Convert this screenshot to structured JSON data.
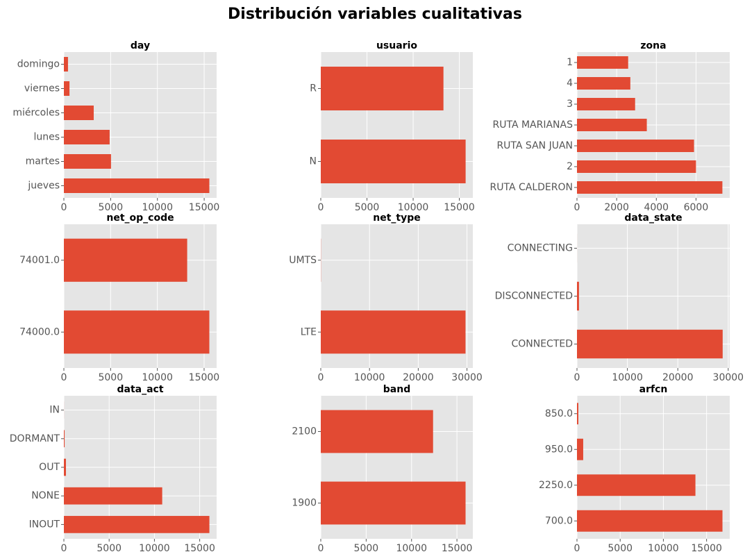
{
  "title": "Distribución variables cualitativas",
  "chart_data": [
    {
      "type": "barh",
      "title": "day",
      "categories": [
        "jueves",
        "martes",
        "lunes",
        "miércoles",
        "viernes",
        "domingo"
      ],
      "values": [
        15550,
        5040,
        4890,
        3190,
        600,
        440
      ],
      "color": "#e24a33",
      "xlim": [
        0,
        16330
      ],
      "xticks": [
        0,
        5000,
        10000,
        15000
      ],
      "grid": true
    },
    {
      "type": "barh",
      "title": "usuario",
      "categories": [
        "N",
        "R"
      ],
      "values": [
        15680,
        13280
      ],
      "color": "#e24a33",
      "xlim": [
        0,
        16460
      ],
      "xticks": [
        0,
        5000,
        10000,
        15000
      ],
      "grid": true
    },
    {
      "type": "barh",
      "title": "zona",
      "categories": [
        "RUTA CALDERON",
        "2",
        "RUTA SAN JUAN",
        "RUTA MARIANAS",
        "3",
        "4",
        "1"
      ],
      "values": [
        7330,
        6000,
        5900,
        3520,
        2930,
        2690,
        2580
      ],
      "color": "#e24a33",
      "xlim": [
        0,
        7700
      ],
      "xticks": [
        0,
        2000,
        4000,
        6000
      ],
      "grid": true
    },
    {
      "type": "barh",
      "title": "net_op_code",
      "categories": [
        "74000.0",
        "74001.0"
      ],
      "values": [
        15560,
        13190
      ],
      "color": "#e24a33",
      "xlim": [
        0,
        16340
      ],
      "xticks": [
        0,
        5000,
        10000,
        15000
      ],
      "grid": true
    },
    {
      "type": "barh",
      "title": "net_type",
      "categories": [
        "LTE",
        "UMTS"
      ],
      "values": [
        29700,
        30
      ],
      "color": "#e24a33",
      "xlim": [
        0,
        31200
      ],
      "xticks": [
        0,
        10000,
        20000,
        30000
      ],
      "grid": true
    },
    {
      "type": "barh",
      "title": "data_state",
      "categories": [
        "CONNECTED",
        "DISCONNECTED",
        "CONNECTING"
      ],
      "values": [
        28900,
        400,
        5
      ],
      "color": "#e24a33",
      "xlim": [
        0,
        30300
      ],
      "xticks": [
        0,
        10000,
        20000,
        30000
      ],
      "grid": true
    },
    {
      "type": "barh",
      "title": "data_act",
      "categories": [
        "INOUT",
        "NONE",
        "OUT",
        "DORMANT",
        "IN"
      ],
      "values": [
        16070,
        10860,
        230,
        80,
        5
      ],
      "color": "#e24a33",
      "xlim": [
        0,
        16870
      ],
      "xticks": [
        0,
        5000,
        10000,
        15000
      ],
      "grid": true
    },
    {
      "type": "barh",
      "title": "band",
      "categories": [
        "1900",
        "2100"
      ],
      "values": [
        15950,
        12370
      ],
      "color": "#e24a33",
      "xlim": [
        0,
        16750
      ],
      "xticks": [
        0,
        5000,
        10000,
        15000
      ],
      "grid": true
    },
    {
      "type": "barh",
      "title": "arfcn",
      "categories": [
        "700.0",
        "2250.0",
        "950.0",
        "850.0"
      ],
      "values": [
        16840,
        13710,
        720,
        160
      ],
      "color": "#e24a33",
      "xlim": [
        0,
        17680
      ],
      "xticks": [
        0,
        5000,
        10000,
        15000
      ],
      "grid": true
    }
  ]
}
